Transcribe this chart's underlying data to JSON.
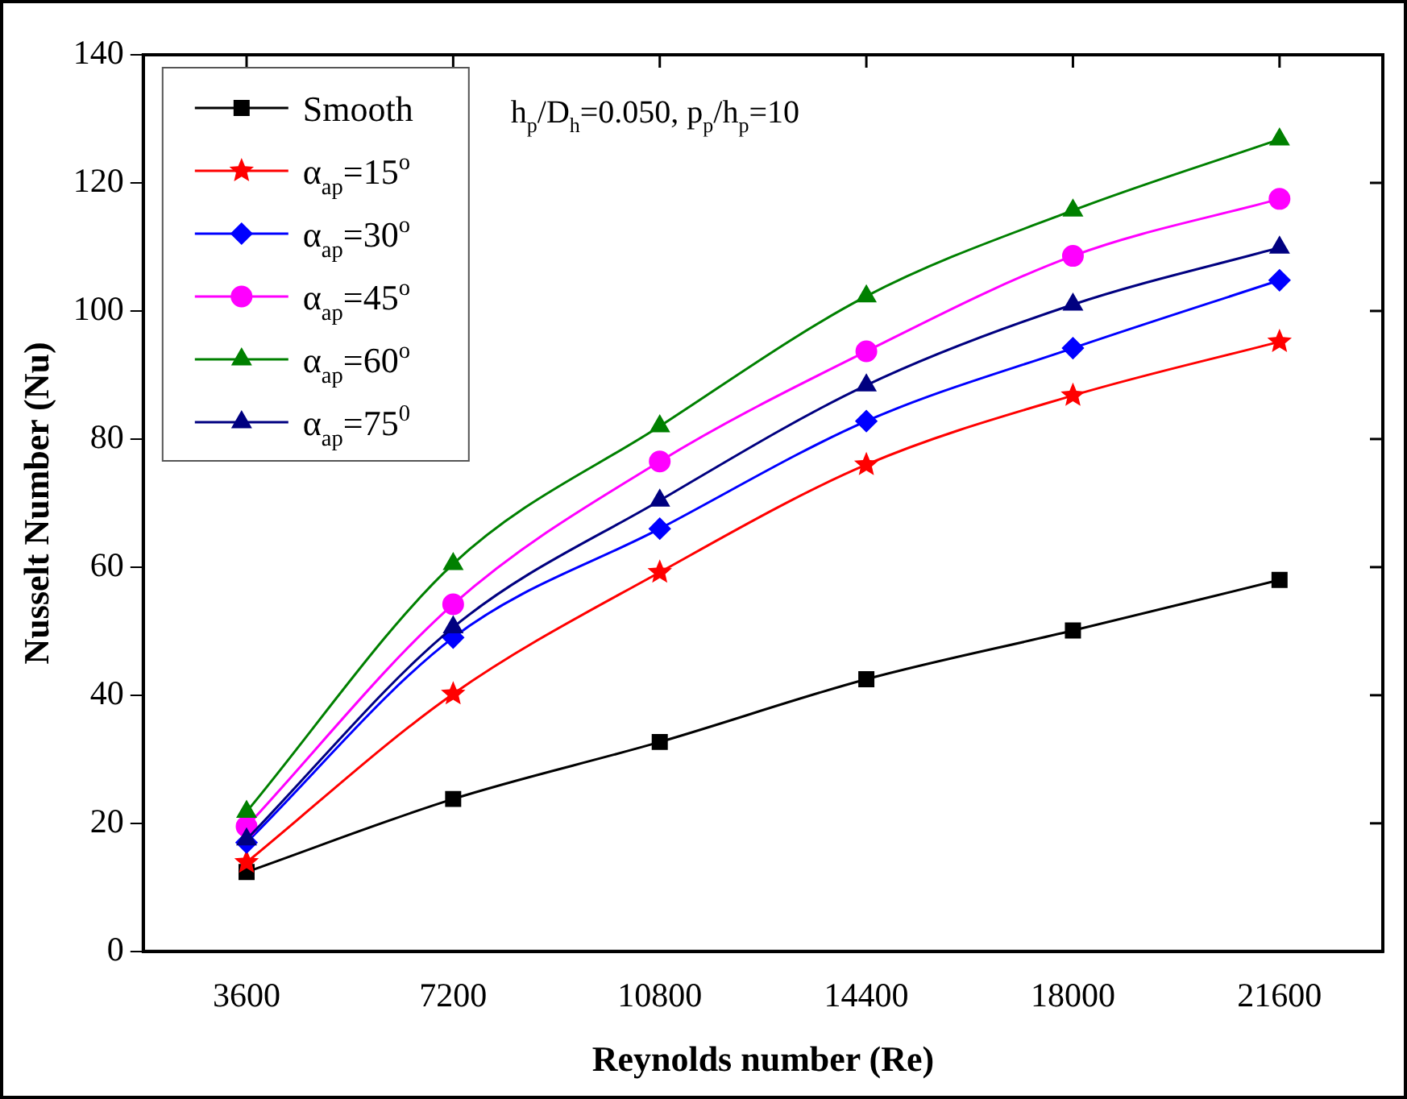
{
  "chart_data": {
    "type": "line",
    "xlabel": "Reynolds number (Re)",
    "ylabel": "Nusselt Number (Nu)",
    "annotations": [
      "h$_{p}$/D$_{h}$=0.050, p$_{p}$/h$_{p}$=10"
    ],
    "x": [
      3600,
      7200,
      10800,
      14400,
      18000,
      21600
    ],
    "xlim": [
      1800,
      23400
    ],
    "xticks": [
      3600,
      7200,
      10800,
      14400,
      18000,
      21600
    ],
    "ylim": [
      0,
      140
    ],
    "yticks": [
      0,
      20,
      40,
      60,
      80,
      100,
      120,
      140
    ],
    "grid": false,
    "legend": "top left",
    "series": [
      {
        "name": "Smooth",
        "color": "#000000",
        "marker": "square",
        "values": [
          12.4,
          23.8,
          32.7,
          42.5,
          50.1,
          58.0
        ]
      },
      {
        "name": "α$_{ap}$=15$^{o}$",
        "color": "#ff0000",
        "marker": "star",
        "values": [
          13.9,
          40.2,
          59.2,
          76.0,
          86.8,
          95.2
        ]
      },
      {
        "name": "α$_{ap}$=30$^{o}$",
        "color": "#0000ff",
        "marker": "diamond",
        "values": [
          17.0,
          49.0,
          66.0,
          82.8,
          94.2,
          104.8
        ]
      },
      {
        "name": "α$_{ap}$=45$^{o}$",
        "color": "#ff00ff",
        "marker": "circle",
        "values": [
          19.5,
          54.2,
          76.5,
          93.7,
          108.6,
          117.5
        ]
      },
      {
        "name": "α$_{ap}$=60$^{o}$",
        "color": "#008000",
        "marker": "triangle",
        "values": [
          21.8,
          60.5,
          82.0,
          102.3,
          115.7,
          126.8
        ]
      },
      {
        "name": "α$_{ap}$=75$^{0}$",
        "color": "#000080",
        "marker": "triangle",
        "values": [
          17.5,
          50.6,
          70.4,
          88.4,
          101.0,
          109.9
        ]
      }
    ]
  }
}
